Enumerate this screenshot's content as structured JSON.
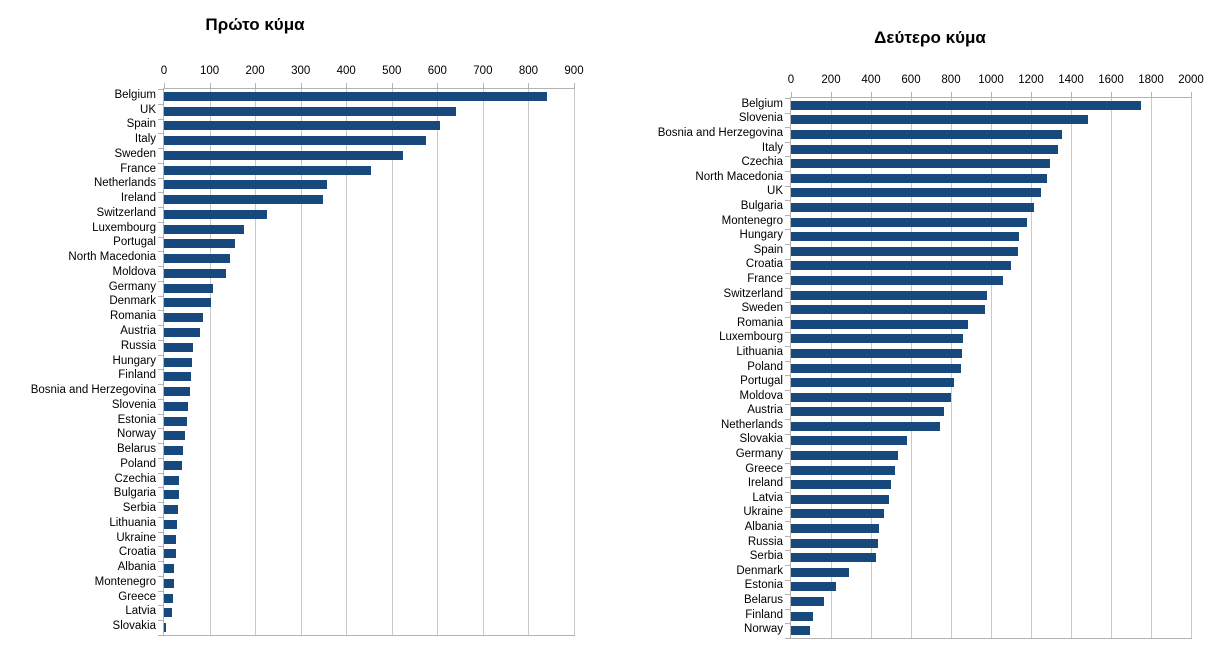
{
  "page_background": "#ffffff",
  "chart_data": [
    {
      "type": "bar",
      "orientation": "horizontal",
      "title": "Πρώτο κύμα",
      "xlabel": "",
      "ylabel": "",
      "xlim": [
        0,
        900
      ],
      "xticks": [
        0,
        100,
        200,
        300,
        400,
        500,
        600,
        700,
        800,
        900
      ],
      "grid": true,
      "bar_color": "#17497c",
      "categories": [
        "Belgium",
        "UK",
        "Spain",
        "Italy",
        "Sweden",
        "France",
        "Netherlands",
        "Ireland",
        "Switzerland",
        "Luxembourg",
        "Portugal",
        "North Macedonia",
        "Moldova",
        "Germany",
        "Denmark",
        "Romania",
        "Austria",
        "Russia",
        "Hungary",
        "Finland",
        "Bosnia and Herzegovina",
        "Slovenia",
        "Estonia",
        "Norway",
        "Belarus",
        "Poland",
        "Czechia",
        "Bulgaria",
        "Serbia",
        "Lithuania",
        "Ukraine",
        "Croatia",
        "Albania",
        "Montenegro",
        "Greece",
        "Latvia",
        "Slovakia"
      ],
      "values": [
        840,
        640,
        605,
        575,
        525,
        455,
        357,
        350,
        227,
        176,
        155,
        145,
        136,
        108,
        104,
        85,
        78,
        64,
        62,
        60,
        57,
        53,
        51,
        47,
        42,
        39,
        34,
        32,
        31,
        29,
        27,
        26,
        22,
        21,
        20,
        17,
        5
      ]
    },
    {
      "type": "bar",
      "orientation": "horizontal",
      "title": "Δεύτερο κύμα",
      "xlabel": "",
      "ylabel": "",
      "xlim": [
        0,
        2000
      ],
      "xticks": [
        0,
        200,
        400,
        600,
        800,
        1000,
        1200,
        1400,
        1600,
        1800,
        2000
      ],
      "grid": true,
      "bar_color": "#17497c",
      "categories": [
        "Belgium",
        "Slovenia",
        "Bosnia and Herzegovina",
        "Italy",
        "Czechia",
        "North Macedonia",
        "UK",
        "Bulgaria",
        "Montenegro",
        "Hungary",
        "Spain",
        "Croatia",
        "France",
        "Switzerland",
        "Sweden",
        "Romania",
        "Luxembourg",
        "Lithuania",
        "Poland",
        "Portugal",
        "Moldova",
        "Austria",
        "Netherlands",
        "Slovakia",
        "Germany",
        "Greece",
        "Ireland",
        "Latvia",
        "Ukraine",
        "Albania",
        "Russia",
        "Serbia",
        "Denmark",
        "Estonia",
        "Belarus",
        "Finland",
        "Norway"
      ],
      "values": [
        1750,
        1485,
        1355,
        1335,
        1295,
        1280,
        1250,
        1215,
        1180,
        1140,
        1135,
        1100,
        1060,
        980,
        970,
        885,
        860,
        855,
        850,
        815,
        800,
        765,
        745,
        580,
        535,
        520,
        500,
        490,
        465,
        440,
        435,
        425,
        290,
        225,
        165,
        110,
        95
      ]
    }
  ]
}
